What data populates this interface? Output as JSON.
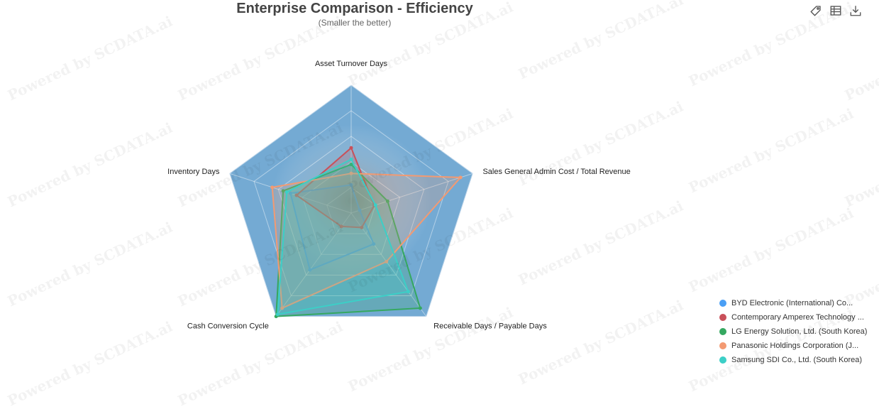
{
  "title": "Enterprise Comparison - Efficiency",
  "subtitle": "(Smaller the better)",
  "watermark": "Powered by SCDATA.ai",
  "toolbar": [
    {
      "name": "tag-icon"
    },
    {
      "name": "table-icon"
    },
    {
      "name": "download-icon"
    }
  ],
  "colors": {
    "background_area": "#74aad3",
    "ring_border": "#bfd6ea"
  },
  "chart_data": {
    "type": "radar",
    "indicators": [
      "Asset Turnover Days",
      "Sales General Admin Cost / Total Revenue",
      "Receivable Days / Payable Days",
      "Cash Conversion Cycle",
      "Inventory Days"
    ],
    "max": 1,
    "series": [
      {
        "name": "BYD Electronic (International) Co...",
        "color": "#4a9ff5",
        "values": [
          0.22,
          0.07,
          0.3,
          0.55,
          0.5
        ]
      },
      {
        "name": "Contemporary Amperex Technology ...",
        "color": "#c9505a",
        "values": [
          0.51,
          0.19,
          0.14,
          0.13,
          0.45
        ]
      },
      {
        "name": "LG Energy Solution, Ltd. (South Korea)",
        "color": "#35a860",
        "values": [
          0.38,
          0.3,
          0.92,
          1.0,
          0.56
        ]
      },
      {
        "name": "Panasonic Holdings Corporation (J...",
        "color": "#f39a72",
        "values": [
          0.31,
          0.9,
          0.47,
          0.92,
          0.65
        ]
      },
      {
        "name": "Samsung SDI Co., Ltd. (South Korea)",
        "color": "#3ccfc7",
        "values": [
          0.42,
          0.2,
          0.76,
          0.98,
          0.53
        ]
      }
    ]
  }
}
